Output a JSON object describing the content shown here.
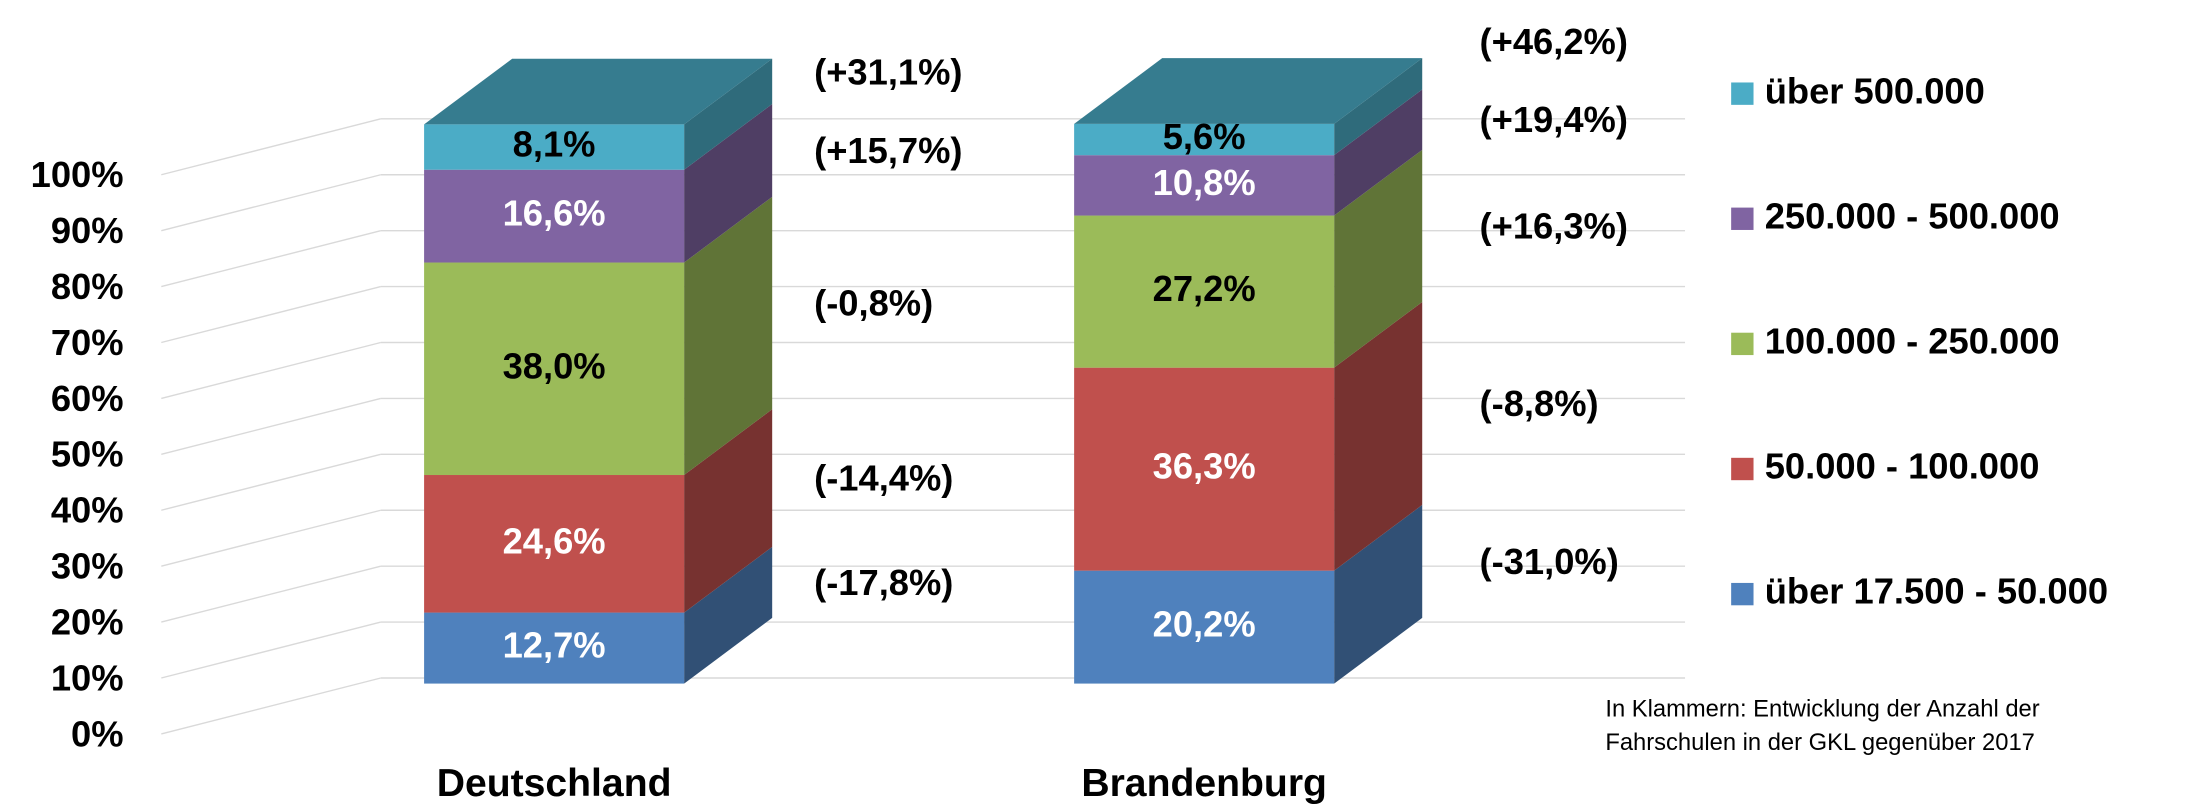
{
  "chart_data": {
    "type": "bar3d_stacked",
    "categories": [
      "Deutschland",
      "Brandenburg"
    ],
    "series": [
      {
        "name": "über 17.500 - 50.000",
        "color": "#4f81bd",
        "values": [
          12.7,
          20.2
        ],
        "value_labels": [
          "12,7%",
          "20,2%"
        ],
        "annotations": [
          "(-17,8%)",
          "(-31,0%)"
        ]
      },
      {
        "name": "50.000 - 100.000",
        "color": "#c0504d",
        "values": [
          24.6,
          36.3
        ],
        "value_labels": [
          "24,6%",
          "36,3%"
        ],
        "annotations": [
          "(-14,4%)",
          "(-8,8%)"
        ]
      },
      {
        "name": "100.000 - 250.000",
        "color": "#9bbb59",
        "values": [
          38.0,
          27.2
        ],
        "value_labels": [
          "38,0%",
          "27,2%"
        ],
        "annotations": [
          "(-0,8%)",
          "(+16,3%)"
        ]
      },
      {
        "name": "250.000 - 500.000",
        "color": "#8064a2",
        "values": [
          16.6,
          10.8
        ],
        "value_labels": [
          "16,6%",
          "10,8%"
        ],
        "annotations": [
          "(+15,7%)",
          "(+19,4%)"
        ]
      },
      {
        "name": "über 500.000",
        "color": "#4bacc6",
        "values": [
          8.1,
          5.6
        ],
        "value_labels": [
          "8,1%",
          "5,6%"
        ],
        "annotations": [
          "(+31,1%)",
          "(+46,2%)"
        ]
      }
    ],
    "ylim": [
      0,
      100
    ],
    "yticks": [
      {
        "value": 0,
        "label": "0%"
      },
      {
        "value": 10,
        "label": "10%"
      },
      {
        "value": 20,
        "label": "20%"
      },
      {
        "value": 30,
        "label": "30%"
      },
      {
        "value": 40,
        "label": "40%"
      },
      {
        "value": 50,
        "label": "50%"
      },
      {
        "value": 60,
        "label": "60%"
      },
      {
        "value": 70,
        "label": "70%"
      },
      {
        "value": 80,
        "label": "80%"
      },
      {
        "value": 90,
        "label": "90%"
      },
      {
        "value": 100,
        "label": "100%"
      }
    ],
    "grid": true,
    "legend": "right",
    "footnote": [
      "In Klammern: Entwicklung der Anzahl der",
      "Fahrschulen in der GKL gegenüber 2017"
    ]
  }
}
